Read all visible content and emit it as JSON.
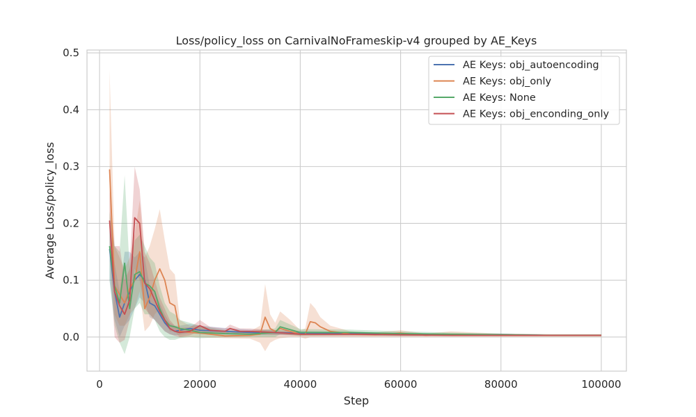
{
  "chart_data": {
    "type": "line",
    "title": "Loss/policy_loss on CarnivalNoFrameskip-v4 grouped by AE_Keys",
    "xlabel": "Step",
    "ylabel": "Average Loss/policy_loss",
    "xlim": [
      -2500,
      105000
    ],
    "ylim": [
      -0.06,
      0.505
    ],
    "xticks": [
      0,
      20000,
      40000,
      60000,
      80000,
      100000
    ],
    "xtick_labels": [
      "0",
      "20000",
      "40000",
      "60000",
      "80000",
      "100000"
    ],
    "yticks": [
      0.0,
      0.1,
      0.2,
      0.3,
      0.4,
      0.5
    ],
    "ytick_labels": [
      "0.0",
      "0.1",
      "0.2",
      "0.3",
      "0.4",
      "0.5"
    ],
    "grid": true,
    "legend_position": "top-right",
    "series": [
      {
        "name": "AE Keys: obj_autoencoding",
        "color": "#4c72b0",
        "x": [
          2000,
          3000,
          4000,
          5000,
          6000,
          7000,
          8000,
          9000,
          10000,
          11000,
          12000,
          13000,
          14000,
          15000,
          16000,
          18000,
          20000,
          25000,
          30000,
          40000,
          50000,
          60000,
          70000,
          80000,
          90000,
          100000
        ],
        "y": [
          0.155,
          0.08,
          0.035,
          0.06,
          0.08,
          0.1,
          0.11,
          0.1,
          0.06,
          0.055,
          0.04,
          0.025,
          0.015,
          0.01,
          0.012,
          0.015,
          0.012,
          0.01,
          0.008,
          0.007,
          0.006,
          0.005,
          0.004,
          0.004,
          0.003,
          0.003
        ],
        "lower": [
          0.1,
          0.03,
          0.0,
          0.02,
          0.03,
          0.05,
          0.07,
          0.06,
          0.035,
          0.03,
          0.02,
          0.01,
          0.005,
          0.003,
          0.004,
          0.007,
          0.005,
          0.004,
          0.003,
          0.003,
          0.003,
          0.002,
          0.002,
          0.002,
          0.002,
          0.002
        ],
        "upper": [
          0.2,
          0.13,
          0.08,
          0.15,
          0.15,
          0.14,
          0.15,
          0.14,
          0.09,
          0.08,
          0.06,
          0.04,
          0.025,
          0.02,
          0.02,
          0.023,
          0.02,
          0.016,
          0.013,
          0.011,
          0.009,
          0.008,
          0.006,
          0.006,
          0.004,
          0.004
        ]
      },
      {
        "name": "AE Keys: obj_only",
        "color": "#dd8452",
        "x": [
          2000,
          3000,
          4000,
          5000,
          6000,
          7000,
          8000,
          9000,
          10000,
          11000,
          12000,
          13000,
          14000,
          15000,
          16000,
          18000,
          20000,
          25000,
          30000,
          32000,
          33000,
          34000,
          35000,
          36000,
          38000,
          40000,
          41000,
          42000,
          43000,
          44000,
          46000,
          48000,
          50000,
          55000,
          60000,
          65000,
          70000,
          75000,
          80000,
          90000,
          100000
        ],
        "y": [
          0.295,
          0.09,
          0.075,
          0.06,
          0.085,
          0.1,
          0.15,
          0.05,
          0.07,
          0.1,
          0.12,
          0.1,
          0.06,
          0.055,
          0.01,
          0.008,
          0.007,
          0.002,
          0.003,
          0.005,
          0.035,
          0.015,
          0.01,
          0.015,
          0.01,
          0.005,
          0.005,
          0.027,
          0.025,
          0.018,
          0.01,
          0.008,
          0.005,
          0.004,
          0.007,
          0.003,
          0.005,
          0.004,
          0.003,
          0.003,
          0.003
        ],
        "lower": [
          0.2,
          0.04,
          0.02,
          0.02,
          0.04,
          0.05,
          0.08,
          0.01,
          0.02,
          0.04,
          0.05,
          0.03,
          0.01,
          0.01,
          0.0,
          0.0,
          0.0,
          -0.002,
          -0.003,
          -0.01,
          -0.025,
          -0.01,
          -0.005,
          -0.002,
          0.0,
          0.0,
          -0.003,
          0.0,
          0.0,
          0.0,
          0.0,
          0.0,
          0.0,
          0.0,
          0.0,
          0.0,
          0.0,
          0.0,
          0.0,
          0.0,
          0.0
        ],
        "upper": [
          0.47,
          0.16,
          0.14,
          0.12,
          0.14,
          0.18,
          0.24,
          0.14,
          0.16,
          0.19,
          0.225,
          0.17,
          0.12,
          0.11,
          0.03,
          0.02,
          0.018,
          0.008,
          0.01,
          0.02,
          0.093,
          0.04,
          0.025,
          0.045,
          0.03,
          0.012,
          0.015,
          0.06,
          0.05,
          0.035,
          0.02,
          0.015,
          0.01,
          0.008,
          0.012,
          0.006,
          0.01,
          0.008,
          0.006,
          0.005,
          0.005
        ]
      },
      {
        "name": "AE Keys: None",
        "color": "#55a868",
        "x": [
          2000,
          3000,
          4000,
          5000,
          6000,
          7000,
          8000,
          9000,
          10000,
          11000,
          12000,
          13000,
          14000,
          15000,
          16000,
          18000,
          20000,
          25000,
          30000,
          35000,
          36000,
          40000,
          50000,
          60000,
          70000,
          80000,
          90000,
          100000
        ],
        "y": [
          0.16,
          0.09,
          0.06,
          0.13,
          0.05,
          0.11,
          0.115,
          0.095,
          0.09,
          0.08,
          0.05,
          0.03,
          0.02,
          0.018,
          0.015,
          0.012,
          0.008,
          0.006,
          0.005,
          0.008,
          0.018,
          0.008,
          0.008,
          0.006,
          0.005,
          0.004,
          0.003,
          0.003
        ],
        "lower": [
          0.1,
          0.02,
          -0.01,
          -0.03,
          0.0,
          0.05,
          0.06,
          0.04,
          0.04,
          0.03,
          0.01,
          0.0,
          -0.005,
          -0.005,
          -0.002,
          0.0,
          -0.002,
          0.0,
          0.0,
          0.0,
          0.005,
          0.002,
          0.003,
          0.002,
          0.002,
          0.002,
          0.002,
          0.002
        ],
        "upper": [
          0.22,
          0.16,
          0.15,
          0.285,
          0.12,
          0.17,
          0.18,
          0.16,
          0.14,
          0.13,
          0.09,
          0.06,
          0.045,
          0.04,
          0.03,
          0.025,
          0.02,
          0.012,
          0.01,
          0.015,
          0.03,
          0.014,
          0.013,
          0.01,
          0.008,
          0.006,
          0.005,
          0.005
        ]
      },
      {
        "name": "AE Keys: obj_enconding_only",
        "color": "#c44e52",
        "x": [
          2000,
          3000,
          4000,
          5000,
          6000,
          7000,
          8000,
          9000,
          10000,
          11000,
          12000,
          13000,
          14000,
          15000,
          16000,
          18000,
          19000,
          20000,
          22000,
          25000,
          26000,
          28000,
          30000,
          35000,
          40000,
          50000,
          60000,
          70000,
          80000,
          90000,
          100000
        ],
        "y": [
          0.205,
          0.08,
          0.055,
          0.04,
          0.065,
          0.21,
          0.2,
          0.095,
          0.085,
          0.065,
          0.045,
          0.03,
          0.015,
          0.01,
          0.008,
          0.01,
          0.015,
          0.02,
          0.012,
          0.01,
          0.015,
          0.01,
          0.01,
          0.008,
          0.005,
          0.005,
          0.004,
          0.003,
          0.003,
          0.003,
          0.003
        ],
        "lower": [
          0.15,
          0.0,
          -0.01,
          -0.005,
          0.03,
          0.12,
          0.1,
          0.05,
          0.04,
          0.03,
          0.02,
          0.01,
          0.005,
          0.002,
          0.0,
          0.003,
          0.007,
          0.01,
          0.006,
          0.005,
          0.008,
          0.005,
          0.005,
          0.004,
          0.002,
          0.002,
          0.002,
          0.002,
          0.002,
          0.002,
          0.002
        ],
        "upper": [
          0.26,
          0.16,
          0.16,
          0.1,
          0.12,
          0.3,
          0.26,
          0.15,
          0.13,
          0.1,
          0.07,
          0.05,
          0.03,
          0.02,
          0.016,
          0.017,
          0.023,
          0.03,
          0.018,
          0.015,
          0.022,
          0.015,
          0.015,
          0.012,
          0.009,
          0.008,
          0.006,
          0.005,
          0.004,
          0.004,
          0.004
        ]
      }
    ]
  }
}
